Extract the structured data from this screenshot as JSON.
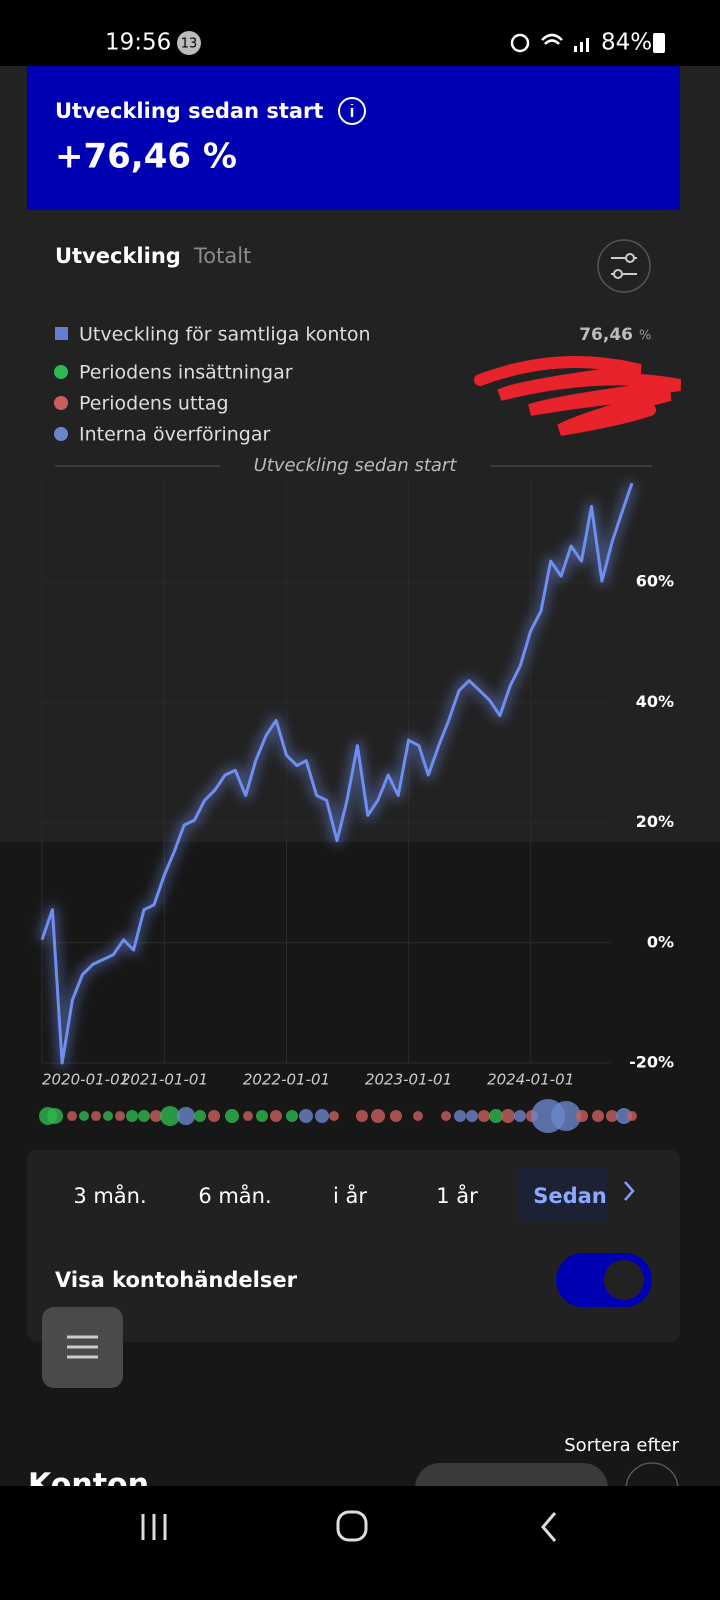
{
  "status_bar": {
    "time": "19:56",
    "notifications": "13",
    "battery": "84%"
  },
  "header": {
    "title": "Utveckling sedan start",
    "value": "+76,46 %"
  },
  "tabs": [
    "Utveckling",
    "Totalt"
  ],
  "summary": {
    "value": "76,46",
    "unit": "%"
  },
  "chart_data": {
    "type": "line",
    "subtitle": "Utveckling sedan start",
    "x": [
      "2020-01-01",
      "2020-02-01",
      "2020-03-01",
      "2020-04-01",
      "2020-05-01",
      "2020-06-01",
      "2020-07-01",
      "2020-08-01",
      "2020-09-01",
      "2020-10-01",
      "2020-11-01",
      "2020-12-01",
      "2021-01-01",
      "2021-02-01",
      "2021-03-01",
      "2021-04-01",
      "2021-05-01",
      "2021-06-01",
      "2021-07-01",
      "2021-08-01",
      "2021-09-01",
      "2021-10-01",
      "2021-11-01",
      "2021-12-01",
      "2022-01-01",
      "2022-02-01",
      "2022-03-01",
      "2022-04-01",
      "2022-05-01",
      "2022-06-01",
      "2022-07-01",
      "2022-08-01",
      "2022-09-01",
      "2022-10-01",
      "2022-11-01",
      "2022-12-01",
      "2023-01-01",
      "2023-02-01",
      "2023-03-01",
      "2023-04-01",
      "2023-05-01",
      "2023-06-01",
      "2023-07-01",
      "2023-08-01",
      "2023-09-01",
      "2023-10-01",
      "2023-11-01",
      "2023-12-01",
      "2024-01-01",
      "2024-02-01",
      "2024-03-01",
      "2024-04-01",
      "2024-05-01",
      "2024-06-01",
      "2024-07-01",
      "2024-08-01",
      "2024-09-01",
      "2024-10-01",
      "2024-10-30"
    ],
    "series": [
      {
        "name": "Utveckling för samtliga konton",
        "color": "#6f8ff0",
        "values": [
          0.5,
          5.5,
          -20,
          -9.5,
          -5.3,
          -3.6,
          -2.8,
          -2,
          0.5,
          -1.2,
          5.5,
          6.3,
          11.3,
          15.4,
          19.6,
          20.4,
          23.7,
          25.4,
          27.9,
          28.7,
          24.5,
          30.3,
          34.5,
          37,
          31.2,
          29.5,
          30.3,
          24.5,
          23.7,
          17,
          23.7,
          32.8,
          21.2,
          23.7,
          27.9,
          24.5,
          33.7,
          32.8,
          27.9,
          32.8,
          37,
          42,
          43.6,
          42,
          40.3,
          37.8,
          42.8,
          46.1,
          51.9,
          55.2,
          63.5,
          61,
          66,
          63.5,
          72.6,
          60.2,
          66.8,
          71.8,
          76.46
        ]
      }
    ],
    "events": [
      {
        "name": "Periodens insättningar",
        "color": "#2fb84f"
      },
      {
        "name": "Periodens uttag",
        "color": "#c9605f"
      },
      {
        "name": "Interna överföringar",
        "color": "#6a86c9"
      }
    ],
    "xlim": [
      "2020-01-01",
      "2024-10-30"
    ],
    "xticks": [
      "2020-01-01",
      "2021-01-01",
      "2022-01-01",
      "2023-01-01",
      "2024-01-01"
    ],
    "ylim": [
      -20,
      77
    ],
    "yticks": [
      {
        "value": -20,
        "label": "-20%"
      },
      {
        "value": 0,
        "label": "0%"
      },
      {
        "value": 20,
        "label": "20%"
      },
      {
        "value": 40,
        "label": "40%"
      },
      {
        "value": 60,
        "label": "60%"
      }
    ],
    "grid": true
  },
  "periods": [
    "3 mån.",
    "6 mån.",
    "i år",
    "1 år",
    "Sedan"
  ],
  "toggle_label": "Visa kontohändelser",
  "sort_label": "Sortera efter",
  "section_title": "Konton"
}
